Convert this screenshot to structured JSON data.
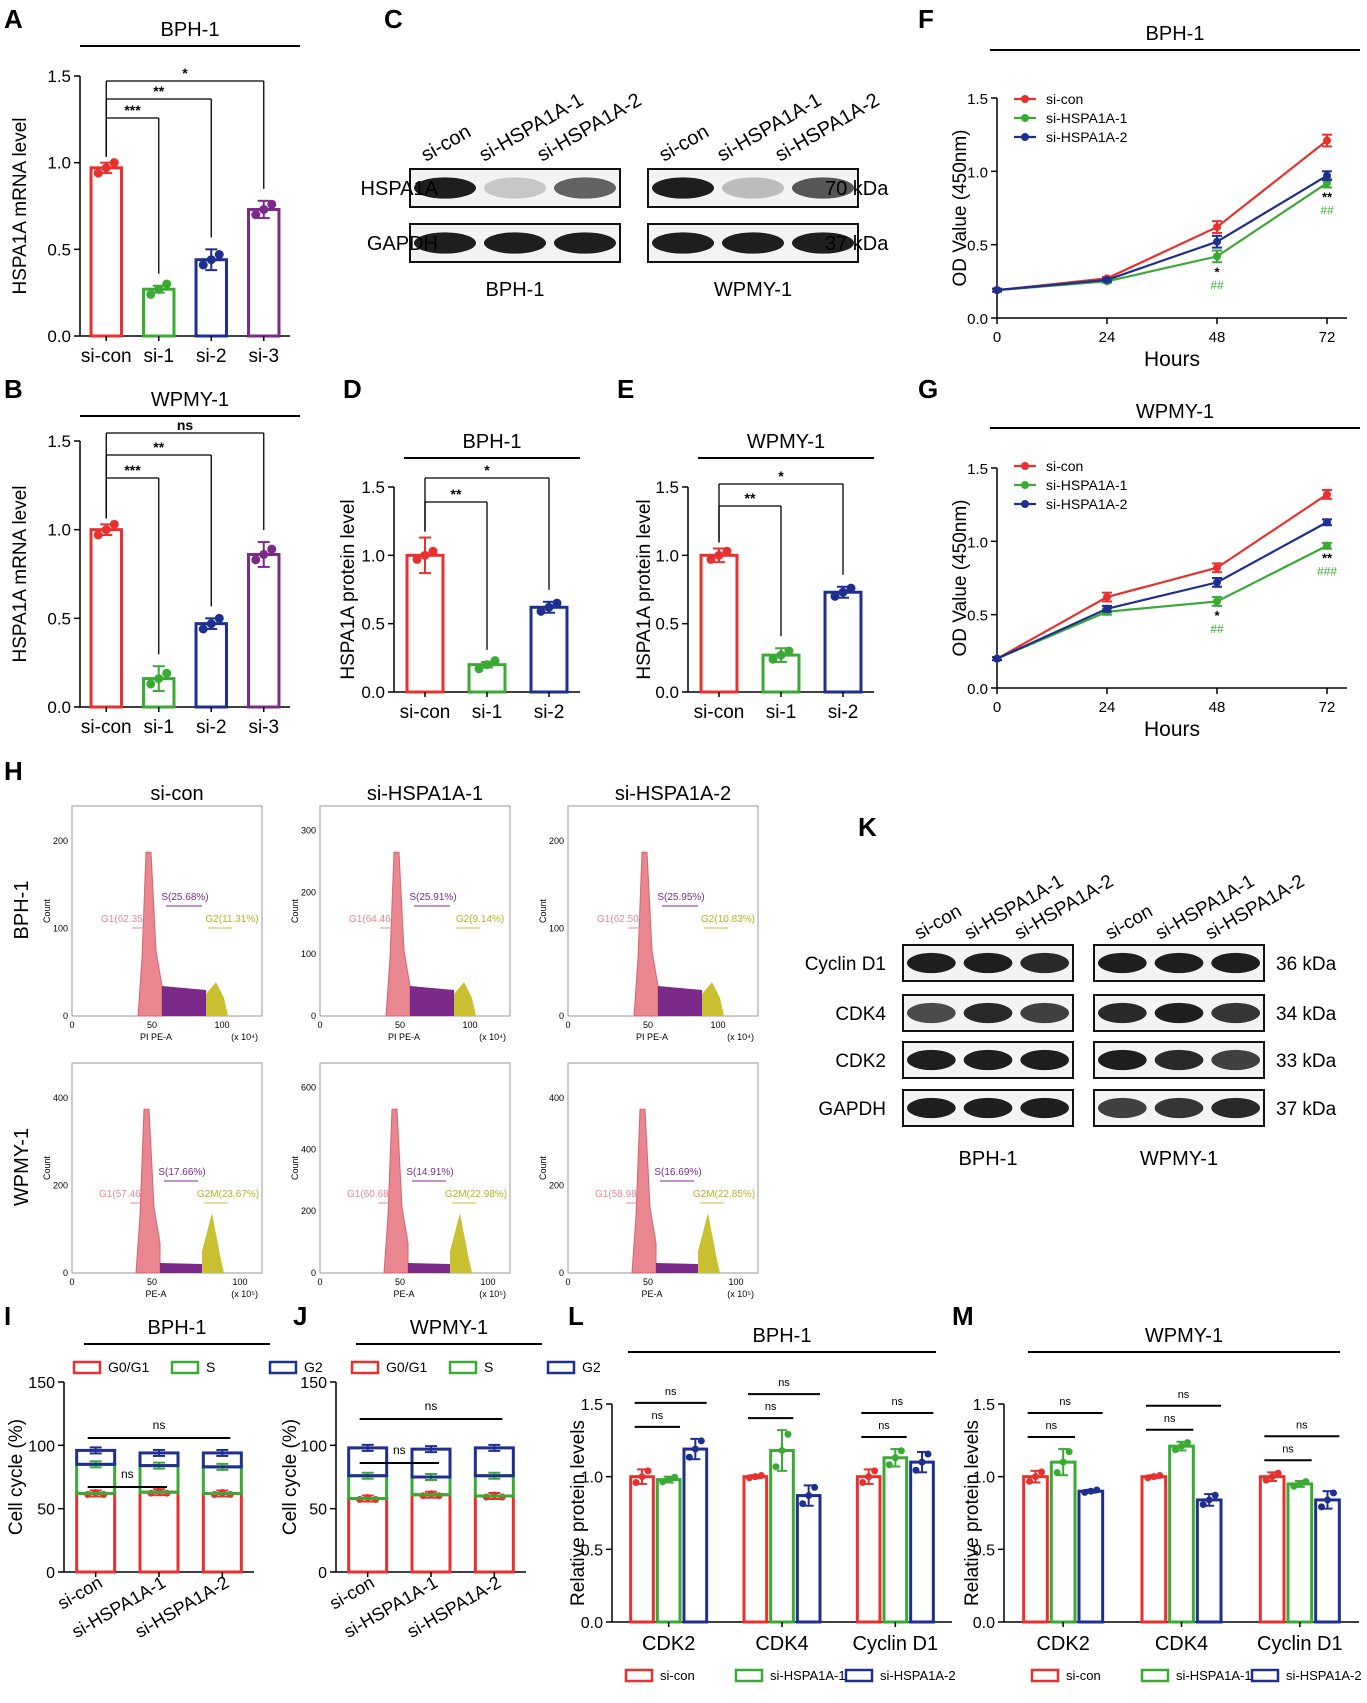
{
  "colors": {
    "red": "#e8312f",
    "green": "#3aaa35",
    "blue": "#1e2f8f",
    "purple": "#7b2a8a",
    "pink": "#e8878f",
    "olive": "#c8c030"
  },
  "panels": {
    "A": {
      "letter": "A",
      "title": "BPH-1"
    },
    "B": {
      "letter": "B",
      "title": "WPMY-1"
    },
    "C": {
      "letter": "C"
    },
    "D": {
      "letter": "D",
      "title": "BPH-1"
    },
    "E": {
      "letter": "E",
      "title": "WPMY-1"
    },
    "F": {
      "letter": "F",
      "title": "BPH-1"
    },
    "G": {
      "letter": "G",
      "title": "WPMY-1"
    },
    "H": {
      "letter": "H"
    },
    "K": {
      "letter": "K"
    },
    "I": {
      "letter": "I",
      "title": "BPH-1"
    },
    "J": {
      "letter": "J",
      "title": "WPMY-1"
    },
    "L": {
      "letter": "L",
      "title": "BPH-1"
    },
    "M": {
      "letter": "M",
      "title": "WPMY-1"
    }
  },
  "chart_data": [
    {
      "id": "A",
      "type": "bar",
      "title": "BPH-1",
      "ylabel": "HSPA1A mRNA level",
      "categories": [
        "si-con",
        "si-1",
        "si-2",
        "si-3"
      ],
      "values": [
        0.97,
        0.27,
        0.44,
        0.73
      ],
      "errors": [
        0.03,
        0.02,
        0.06,
        0.05
      ],
      "ylim": [
        0,
        1.5
      ],
      "yticks": [
        "0.0",
        "0.5",
        "1.0",
        "1.5"
      ],
      "colors": [
        "#e8312f",
        "#3aaa35",
        "#1e2f8f",
        "#7b2a8a"
      ],
      "significance": [
        {
          "label": "***",
          "to": "si-1"
        },
        {
          "label": "**",
          "to": "si-2"
        },
        {
          "label": "*",
          "to": "si-3"
        }
      ]
    },
    {
      "id": "B",
      "type": "bar",
      "title": "WPMY-1",
      "ylabel": "HSPA1A mRNA level",
      "categories": [
        "si-con",
        "si-1",
        "si-2",
        "si-3"
      ],
      "values": [
        1.0,
        0.16,
        0.47,
        0.86
      ],
      "errors": [
        0.03,
        0.07,
        0.03,
        0.07
      ],
      "ylim": [
        0,
        1.5
      ],
      "yticks": [
        "0.0",
        "0.5",
        "1.0",
        "1.5"
      ],
      "colors": [
        "#e8312f",
        "#3aaa35",
        "#1e2f8f",
        "#7b2a8a"
      ],
      "significance": [
        {
          "label": "***",
          "to": "si-1"
        },
        {
          "label": "**",
          "to": "si-2"
        },
        {
          "label": "ns",
          "to": "si-3"
        }
      ]
    },
    {
      "id": "D",
      "type": "bar",
      "title": "BPH-1",
      "ylabel": "HSPA1A protein level",
      "categories": [
        "si-con",
        "si-1",
        "si-2"
      ],
      "values": [
        1.0,
        0.2,
        0.62
      ],
      "errors": [
        0.13,
        0.02,
        0.04
      ],
      "ylim": [
        0,
        1.5
      ],
      "yticks": [
        "0.0",
        "0.5",
        "1.0",
        "1.5"
      ],
      "colors": [
        "#e8312f",
        "#3aaa35",
        "#1e2f8f"
      ],
      "significance": [
        {
          "label": "**",
          "to": "si-1"
        },
        {
          "label": "*",
          "to": "si-2"
        }
      ]
    },
    {
      "id": "E",
      "type": "bar",
      "title": "WPMY-1",
      "ylabel": "HSPA1A protein level",
      "categories": [
        "si-con",
        "si-1",
        "si-2"
      ],
      "values": [
        1.0,
        0.27,
        0.73
      ],
      "errors": [
        0.05,
        0.05,
        0.04
      ],
      "ylim": [
        0,
        1.5
      ],
      "yticks": [
        "0.0",
        "0.5",
        "1.0",
        "1.5"
      ],
      "colors": [
        "#e8312f",
        "#3aaa35",
        "#1e2f8f"
      ],
      "significance": [
        {
          "label": "**",
          "to": "si-1"
        },
        {
          "label": "*",
          "to": "si-2"
        }
      ]
    },
    {
      "id": "F",
      "type": "line",
      "title": "BPH-1",
      "xlabel": "Hours",
      "ylabel": "OD Value (450nm)",
      "x": [
        0,
        24,
        48,
        72
      ],
      "xticks": [
        "0",
        "24",
        "48",
        "72"
      ],
      "ylim": [
        0,
        1.5
      ],
      "yticks": [
        "0.0",
        "0.5",
        "1.0",
        "1.5"
      ],
      "legend": "top-left",
      "series": [
        {
          "name": "si-con",
          "color": "#e8312f",
          "values": [
            0.19,
            0.27,
            0.62,
            1.21
          ],
          "errors": [
            0.01,
            0.01,
            0.04,
            0.04
          ]
        },
        {
          "name": "si-HSPA1A-1",
          "color": "#3aaa35",
          "values": [
            0.19,
            0.25,
            0.42,
            0.92
          ],
          "errors": [
            0.01,
            0.01,
            0.04,
            0.03
          ]
        },
        {
          "name": "si-HSPA1A-2",
          "color": "#1e2f8f",
          "values": [
            0.19,
            0.26,
            0.52,
            0.97
          ],
          "errors": [
            0.01,
            0.01,
            0.04,
            0.03
          ]
        }
      ],
      "annotations": [
        {
          "x": 48,
          "top": "*",
          "bottom": "##"
        },
        {
          "x": 72,
          "top": "**",
          "bottom": "##"
        }
      ]
    },
    {
      "id": "G",
      "type": "line",
      "title": "WPMY-1",
      "xlabel": "Hours",
      "ylabel": "OD Value (450nm)",
      "x": [
        0,
        24,
        48,
        72
      ],
      "xticks": [
        "0",
        "24",
        "48",
        "72"
      ],
      "ylim": [
        0,
        1.5
      ],
      "yticks": [
        "0.0",
        "0.5",
        "1.0",
        "1.5"
      ],
      "legend": "top-left",
      "series": [
        {
          "name": "si-con",
          "color": "#e8312f",
          "values": [
            0.2,
            0.62,
            0.82,
            1.32
          ],
          "errors": [
            0.01,
            0.03,
            0.03,
            0.03
          ]
        },
        {
          "name": "si-HSPA1A-1",
          "color": "#3aaa35",
          "values": [
            0.2,
            0.52,
            0.59,
            0.97
          ],
          "errors": [
            0.01,
            0.02,
            0.03,
            0.02
          ]
        },
        {
          "name": "si-HSPA1A-2",
          "color": "#1e2f8f",
          "values": [
            0.2,
            0.54,
            0.72,
            1.13
          ],
          "errors": [
            0.01,
            0.02,
            0.03,
            0.02
          ]
        }
      ],
      "annotations": [
        {
          "x": 48,
          "top": "*",
          "bottom": "##"
        },
        {
          "x": 72,
          "top": "**",
          "bottom": "###"
        }
      ]
    },
    {
      "id": "I",
      "type": "bar",
      "title": "BPH-1",
      "ylabel": "Cell cycle (%)",
      "stacked": true,
      "categories": [
        "si-con",
        "si-HSPA1A-1",
        "si-HSPA1A-2"
      ],
      "ylim": [
        0,
        150
      ],
      "yticks": [
        "0",
        "50",
        "100",
        "150"
      ],
      "series": [
        {
          "name": "G0/G1",
          "color": "#e8312f",
          "values": [
            62,
            63,
            62
          ]
        },
        {
          "name": "S",
          "color": "#3aaa35",
          "values": [
            23,
            21,
            21
          ]
        },
        {
          "name": "G2",
          "color": "#1e2f8f",
          "values": [
            11,
            10,
            11
          ]
        }
      ],
      "significance": [
        {
          "label": "ns",
          "span": "si-con to si-HSPA1A-1"
        },
        {
          "label": "ns",
          "span": "si-con to si-HSPA1A-2"
        }
      ]
    },
    {
      "id": "J",
      "type": "bar",
      "title": "WPMY-1",
      "ylabel": "Cell cycle (%)",
      "stacked": true,
      "categories": [
        "si-con",
        "si-HSPA1A-1",
        "si-HSPA1A-2"
      ],
      "ylim": [
        0,
        150
      ],
      "yticks": [
        "0",
        "50",
        "100",
        "150"
      ],
      "series": [
        {
          "name": "G0/G1",
          "color": "#e8312f",
          "values": [
            58,
            61,
            60
          ]
        },
        {
          "name": "S",
          "color": "#3aaa35",
          "values": [
            18,
            14,
            16
          ]
        },
        {
          "name": "G2",
          "color": "#1e2f8f",
          "values": [
            22,
            22,
            22
          ]
        }
      ],
      "significance": [
        {
          "label": "ns",
          "span": "si-con to si-HSPA1A-1"
        },
        {
          "label": "ns",
          "span": "si-con to si-HSPA1A-2"
        }
      ]
    },
    {
      "id": "L",
      "type": "bar",
      "title": "BPH-1",
      "ylabel": "Relative protein levels",
      "categories": [
        "CDK2",
        "CDK4",
        "Cyclin D1"
      ],
      "ylim": [
        0,
        1.5
      ],
      "yticks": [
        "0.0",
        "0.5",
        "1.0",
        "1.5"
      ],
      "legend": "bottom",
      "series": [
        {
          "name": "si-con",
          "color": "#e8312f",
          "values": [
            1.0,
            1.0,
            1.0
          ],
          "errors": [
            0.05,
            0.01,
            0.05
          ]
        },
        {
          "name": "si-HSPA1A-1",
          "color": "#3aaa35",
          "values": [
            0.98,
            1.18,
            1.13
          ],
          "errors": [
            0.02,
            0.14,
            0.06
          ]
        },
        {
          "name": "si-HSPA1A-2",
          "color": "#1e2f8f",
          "values": [
            1.19,
            0.87,
            1.1
          ],
          "errors": [
            0.07,
            0.07,
            0.07
          ]
        }
      ],
      "significance": [
        "ns",
        "ns",
        "ns",
        "ns",
        "ns",
        "ns"
      ]
    },
    {
      "id": "M",
      "type": "bar",
      "title": "WPMY-1",
      "ylabel": "Relative protein levels",
      "categories": [
        "CDK2",
        "CDK4",
        "Cyclin D1"
      ],
      "ylim": [
        0,
        1.5
      ],
      "yticks": [
        "0.0",
        "0.5",
        "1.0",
        "1.5"
      ],
      "legend": "bottom",
      "series": [
        {
          "name": "si-con",
          "color": "#e8312f",
          "values": [
            1.0,
            1.0,
            1.0
          ],
          "errors": [
            0.04,
            0.01,
            0.03
          ]
        },
        {
          "name": "si-HSPA1A-1",
          "color": "#3aaa35",
          "values": [
            1.1,
            1.21,
            0.95
          ],
          "errors": [
            0.09,
            0.03,
            0.02
          ]
        },
        {
          "name": "si-HSPA1A-2",
          "color": "#1e2f8f",
          "values": [
            0.9,
            0.84,
            0.84
          ],
          "errors": [
            0.01,
            0.04,
            0.06
          ]
        }
      ],
      "significance": [
        "ns",
        "ns",
        "ns",
        "ns",
        "ns",
        "ns"
      ]
    },
    {
      "id": "H",
      "type": "histogram",
      "xlabel_top": "PI PE-A",
      "xlabel_bottom": "PE-A",
      "ylabel": "Count",
      "columns": [
        "si-con",
        "si-HSPA1A-1",
        "si-HSPA1A-2"
      ],
      "rows": [
        "BPH-1",
        "WPMY-1"
      ],
      "top_xticks": [
        "0",
        "50",
        "100"
      ],
      "top_xunit": "(x 10⁴)",
      "bottom_xticks": [
        "0",
        "50",
        "100"
      ],
      "bottom_xunit": "(x 10⁵)",
      "plots": [
        {
          "row": "BPH-1",
          "col": "si-con",
          "g1": "G1(62.35%)",
          "s": "S(25.68%)",
          "g2": "G2(11.31%)",
          "yticks": [
            "0",
            "100",
            "200"
          ]
        },
        {
          "row": "BPH-1",
          "col": "si-HSPA1A-1",
          "g1": "G1(64.46%)",
          "s": "S(25.91%)",
          "g2": "G2(9.14%)",
          "yticks": [
            "0",
            "100",
            "200",
            "300"
          ]
        },
        {
          "row": "BPH-1",
          "col": "si-HSPA1A-2",
          "g1": "G1(62.50%)",
          "s": "S(25.95%)",
          "g2": "G2(10.83%)",
          "yticks": [
            "0",
            "100",
            "200"
          ]
        },
        {
          "row": "WPMY-1",
          "col": "si-con",
          "g1": "G1(57.46%)",
          "s": "S(17.66%)",
          "g2": "G2M(23.67%)",
          "yticks": [
            "0",
            "200",
            "400"
          ]
        },
        {
          "row": "WPMY-1",
          "col": "si-HSPA1A-1",
          "g1": "G1(60.68%)",
          "s": "S(14.91%)",
          "g2": "G2M(22.98%)",
          "yticks": [
            "0",
            "200",
            "400",
            "600"
          ]
        },
        {
          "row": "WPMY-1",
          "col": "si-HSPA1A-2",
          "g1": "G1(58.98%)",
          "s": "S(16.69%)",
          "g2": "G2M(22.85%)",
          "yticks": [
            "0",
            "200",
            "400"
          ]
        }
      ]
    }
  ],
  "blots": {
    "C": {
      "lanes": [
        "si-con",
        "si-HSPA1A-1",
        "si-HSPA1A-2"
      ],
      "proteins": [
        {
          "name": "HSPA1A",
          "size": "70 kDa"
        },
        {
          "name": "GAPDH",
          "size": "37 kDa"
        }
      ],
      "cells": [
        "BPH-1",
        "WPMY-1"
      ],
      "intensity": {
        "BPH-1": [
          [
            1.0,
            0.25,
            0.7
          ],
          [
            1.0,
            1.0,
            1.0
          ]
        ],
        "WPMY-1": [
          [
            1.0,
            0.3,
            0.75
          ],
          [
            1.0,
            1.0,
            1.0
          ]
        ]
      }
    },
    "K": {
      "lanes": [
        "si-con",
        "si-HSPA1A-1",
        "si-HSPA1A-2"
      ],
      "proteins": [
        {
          "name": "Cyclin D1",
          "size": "36 kDa"
        },
        {
          "name": "CDK4",
          "size": "34 kDa"
        },
        {
          "name": "CDK2",
          "size": "33 kDa"
        },
        {
          "name": "GAPDH",
          "size": "37 kDa"
        }
      ],
      "cells": [
        "BPH-1",
        "WPMY-1"
      ],
      "intensity": {
        "BPH-1": [
          [
            1.0,
            1.0,
            0.95
          ],
          [
            0.8,
            0.95,
            0.85
          ],
          [
            1.0,
            1.0,
            1.0
          ],
          [
            1.0,
            1.0,
            1.0
          ]
        ],
        "WPMY-1": [
          [
            1.0,
            1.0,
            1.0
          ],
          [
            0.95,
            1.0,
            0.9
          ],
          [
            1.0,
            0.95,
            0.85
          ],
          [
            0.85,
            0.9,
            0.95
          ]
        ]
      }
    }
  }
}
